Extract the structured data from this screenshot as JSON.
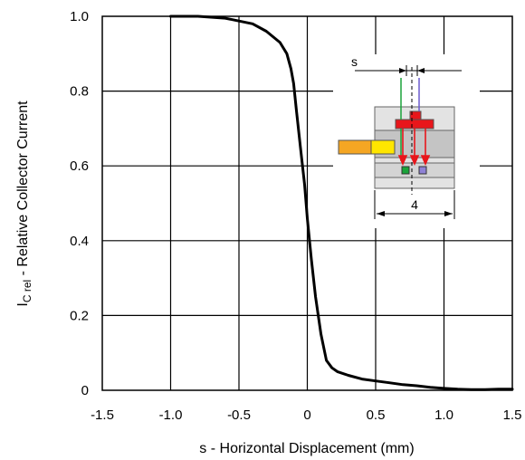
{
  "chart_data": {
    "type": "line",
    "xlabel": "s - Horizontal Displacement (mm)",
    "ylabel_main": "I",
    "ylabel_sub": "C rel",
    "ylabel_rest": " - Relative Collector Current",
    "xlim": [
      -1.5,
      1.5
    ],
    "ylim": [
      0,
      1.0
    ],
    "x_ticks": [
      "-1.5",
      "-1.0",
      "-0.5",
      "0",
      "0.5",
      "1.0",
      "1.5"
    ],
    "y_ticks": [
      "0",
      "0.2",
      "0.4",
      "0.6",
      "0.8",
      "1.0"
    ],
    "grid": true,
    "series": [
      {
        "x": [
          -1.0,
          -0.8,
          -0.6,
          -0.4,
          -0.3,
          -0.2,
          -0.15,
          -0.12,
          -0.1,
          -0.08,
          -0.05,
          -0.02,
          0.0,
          0.03,
          0.06,
          0.1,
          0.14,
          0.18,
          0.22,
          0.3,
          0.4,
          0.5,
          0.6,
          0.7,
          0.8,
          0.9,
          1.0,
          1.1,
          1.2,
          1.3,
          1.4,
          1.5
        ],
        "y": [
          1.0,
          1.0,
          0.995,
          0.98,
          0.96,
          0.93,
          0.9,
          0.86,
          0.82,
          0.75,
          0.65,
          0.55,
          0.46,
          0.35,
          0.25,
          0.15,
          0.08,
          0.06,
          0.05,
          0.04,
          0.03,
          0.025,
          0.02,
          0.015,
          0.012,
          0.008,
          0.005,
          0.003,
          0.002,
          0.002,
          0.003,
          0.003
        ]
      }
    ],
    "inset": {
      "s_label": "s",
      "width_label": "4"
    },
    "colors": {
      "curve": "#000000",
      "grid": "#000000",
      "emitter_red": "#e8161b",
      "green_line": "#1aa33a",
      "purple_line": "#6a5acd",
      "yellow": "#ffe600",
      "orange": "#f5a623",
      "housing_light": "#e3e3e3",
      "housing_mid": "#c4c4c4"
    }
  }
}
